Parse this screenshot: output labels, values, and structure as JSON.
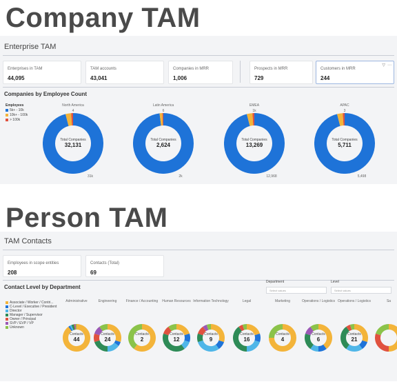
{
  "company_heading": "Company TAM",
  "person_heading": "Person TAM",
  "enterprise": {
    "title": "Enterprise TAM",
    "kpis": [
      {
        "label": "Enterprises in TAM",
        "value": "44,095"
      },
      {
        "label": "TAM accounts",
        "value": "43,041"
      },
      {
        "label": "Companies in MRR",
        "value": "1,006"
      },
      {
        "label": "Prospects in MRR",
        "value": "729"
      },
      {
        "label": "Customers in MRR",
        "value": "244"
      }
    ],
    "employee_section_title": "Companies by Employee Count",
    "legend_title": "Employees",
    "legend": [
      {
        "label": "5k+ - 10k",
        "color": "#1e73d8"
      },
      {
        "label": "10k+ - 100k",
        "color": "#f3b43a"
      },
      {
        "label": "> 100k",
        "color": "#e0523f"
      }
    ],
    "charts": [
      {
        "title": "North America",
        "center_label": "Total Companies",
        "center_value": "32,131",
        "top_tick": "4",
        "bottom_tick": "31k",
        "values": [
          96,
          3,
          1
        ]
      },
      {
        "title": "Latin America",
        "center_label": "Total Companies",
        "center_value": "2,624",
        "top_tick": "6",
        "bottom_tick": "2k",
        "values": [
          98,
          1.5,
          0.5
        ]
      },
      {
        "title": "EMEA",
        "center_label": "Total Companies",
        "center_value": "13,269",
        "top_tick": "1k",
        "bottom_tick": "12,968",
        "values": [
          96,
          3,
          1
        ]
      },
      {
        "title": "APAC",
        "center_label": "Total Companies",
        "center_value": "5,711",
        "top_tick": "3",
        "bottom_tick": "5,498",
        "values": [
          96,
          3,
          1
        ]
      }
    ]
  },
  "contacts": {
    "title": "TAM Contacts",
    "kpis": [
      {
        "label": "Employees in scope entities",
        "value": "208"
      },
      {
        "label": "Contacts (Total)",
        "value": "69"
      }
    ],
    "section_title": "Contact Level by Department",
    "filters": [
      {
        "label": "Department",
        "placeholder": "Select values"
      },
      {
        "label": "Level",
        "placeholder": "Select values"
      }
    ],
    "legend": [
      {
        "label": "Associate / Worker / Contri...",
        "color": "#f3b43a"
      },
      {
        "label": "C-Level / Executive / President",
        "color": "#1e73d8"
      },
      {
        "label": "Director",
        "color": "#4fb6e8"
      },
      {
        "label": "Manager / Supervisor",
        "color": "#2e8b57"
      },
      {
        "label": "Owner / Principal",
        "color": "#e0523f"
      },
      {
        "label": "SVP / EVP / VP",
        "color": "#9b59b6"
      },
      {
        "label": "Unknown",
        "color": "#8bc34a"
      }
    ],
    "charts": [
      {
        "title": "Administrative",
        "center_label": "Contacts",
        "center_value": "44",
        "values": [
          90,
          2,
          2,
          3,
          1,
          1,
          1
        ]
      },
      {
        "title": "Engineering",
        "center_label": "Contacts",
        "center_value": "24",
        "values": [
          30,
          5,
          15,
          20,
          10,
          10,
          10
        ]
      },
      {
        "title": "Finance / Accounting",
        "center_label": "Contacts",
        "center_value": "2",
        "values": [
          60,
          0,
          0,
          0,
          0,
          0,
          40
        ]
      },
      {
        "title": "Human Resources",
        "center_label": "Contacts",
        "center_value": "12",
        "values": [
          20,
          10,
          10,
          40,
          10,
          0,
          10
        ]
      },
      {
        "title": "Information Technology",
        "center_label": "Contacts",
        "center_value": "9",
        "values": [
          30,
          10,
          30,
          10,
          10,
          5,
          5
        ]
      },
      {
        "title": "Legal",
        "center_label": "Contacts",
        "center_value": "16",
        "values": [
          20,
          10,
          20,
          40,
          5,
          0,
          5
        ]
      },
      {
        "title": "Marketing",
        "center_label": "Contacts",
        "center_value": "4",
        "values": [
          75,
          0,
          0,
          0,
          0,
          0,
          25
        ]
      },
      {
        "title": "Operations / Logistics",
        "center_label": "Contacts",
        "center_value": "6",
        "values": [
          40,
          10,
          10,
          20,
          0,
          10,
          10
        ]
      },
      {
        "title": "Operations / Logistics",
        "center_label": "Contacts",
        "center_value": "21",
        "values": [
          30,
          10,
          20,
          30,
          5,
          0,
          5
        ]
      },
      {
        "title": "Sa",
        "center_label": "",
        "center_value": "",
        "values": [
          50,
          0,
          0,
          0,
          30,
          0,
          20
        ]
      }
    ]
  },
  "chart_data": [
    {
      "type": "pie",
      "title": "Companies by Employee Count",
      "categories": [
        "North America",
        "Latin America",
        "EMEA",
        "APAC"
      ],
      "series": [
        {
          "name": "5k+ - 10k",
          "values": [
            96,
            98,
            96,
            96
          ]
        },
        {
          "name": "10k+ - 100k",
          "values": [
            3,
            1.5,
            3,
            3
          ]
        },
        {
          "name": "> 100k",
          "values": [
            1,
            0.5,
            1,
            1
          ]
        }
      ],
      "totals": [
        "32,131",
        "2,624",
        "13,269",
        "5,711"
      ]
    },
    {
      "type": "pie",
      "title": "Contact Level by Department",
      "categories": [
        "Administrative",
        "Engineering",
        "Finance / Accounting",
        "Human Resources",
        "Information Technology",
        "Legal",
        "Marketing",
        "Operations / Logistics",
        "Operations / Logistics",
        "Sa"
      ],
      "totals": [
        "44",
        "24",
        "2",
        "12",
        "9",
        "16",
        "4",
        "6",
        "21",
        ""
      ]
    }
  ]
}
